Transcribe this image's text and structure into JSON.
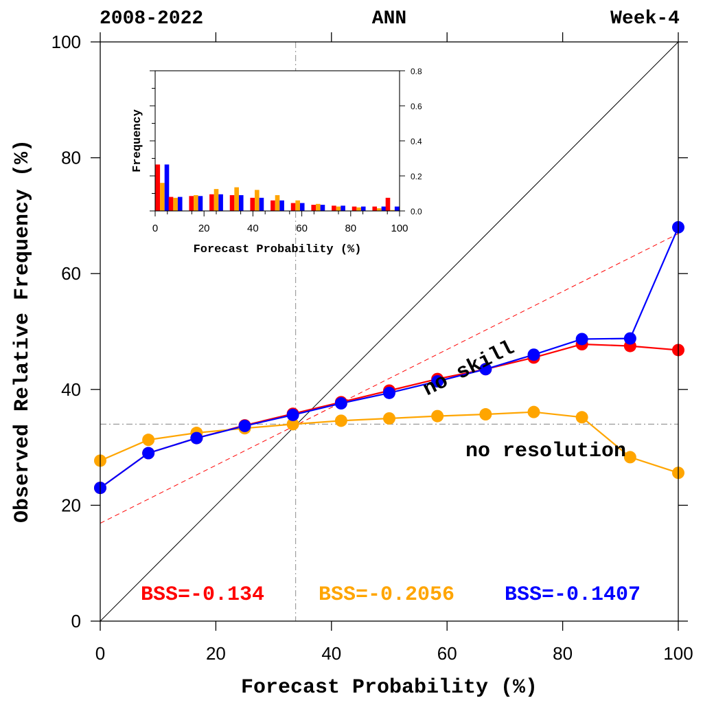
{
  "header": {
    "left": "2008-2022",
    "center": "ANN",
    "right": "Week-4"
  },
  "chart_data": [
    {
      "type": "line",
      "xlabel": "Forecast Probability (%)",
      "ylabel": "Observed Relative Frequency (%)",
      "xlim": [
        0,
        100
      ],
      "ylim": [
        0,
        100
      ],
      "x_ticks": [
        "0",
        "20",
        "40",
        "60",
        "80",
        "100"
      ],
      "y_ticks": [
        "0",
        "20",
        "40",
        "60",
        "80",
        "100"
      ],
      "grid": false,
      "x": [
        0,
        8.33,
        16.67,
        25,
        33.33,
        41.67,
        50,
        58.33,
        66.67,
        75,
        83.33,
        91.67,
        100
      ],
      "series": [
        {
          "color": "#ff0000",
          "values": [
            23.0,
            29.0,
            31.6,
            33.8,
            35.8,
            37.8,
            39.8,
            41.8,
            43.5,
            45.5,
            47.8,
            47.5,
            46.8
          ]
        },
        {
          "color": "#ffa500",
          "values": [
            27.7,
            31.3,
            32.5,
            33.3,
            34.0,
            34.6,
            35.0,
            35.4,
            35.7,
            36.1,
            35.2,
            28.3,
            25.6
          ]
        },
        {
          "color": "#0000ff",
          "values": [
            23.0,
            29.0,
            31.6,
            33.7,
            35.6,
            37.6,
            39.4,
            41.4,
            43.5,
            46.0,
            48.7,
            48.8,
            68.0
          ]
        }
      ],
      "perfect_reliability": {
        "x": [
          0,
          100
        ],
        "y": [
          0,
          100
        ],
        "color": "#000000"
      },
      "no_skill": {
        "label": "no skill",
        "x": [
          0,
          100
        ],
        "y": [
          16.9,
          66.9
        ],
        "color": "#ff0000"
      },
      "no_resolution": {
        "label": "no resolution",
        "y": 34,
        "color": "#999999"
      },
      "climatology_x": 33.8,
      "bss": [
        {
          "label": "BSS=-0.134",
          "color": "#ff0000"
        },
        {
          "label": "BSS=-0.2056",
          "color": "#ffa500"
        },
        {
          "label": "BSS=-0.1407",
          "color": "#0000ff"
        }
      ]
    },
    {
      "type": "bar",
      "xlabel": "Forecast Probability (%)",
      "ylabel": "Frequency",
      "xlim": [
        0,
        100
      ],
      "ylim": [
        0,
        0.8
      ],
      "x_ticks": [
        "0",
        "20",
        "40",
        "60",
        "80",
        "100"
      ],
      "y_ticks": [
        "0.0",
        "0.2",
        "0.4",
        "0.6",
        "0.8"
      ],
      "categories": [
        0,
        8.33,
        16.67,
        25,
        33.33,
        41.67,
        50,
        58.33,
        66.67,
        75,
        83.33,
        91.67,
        100
      ],
      "series": [
        {
          "color": "#ff0000",
          "values": [
            0.265,
            0.08,
            0.085,
            0.095,
            0.09,
            0.075,
            0.06,
            0.045,
            0.035,
            0.03,
            0.025,
            0.025,
            0.075
          ]
        },
        {
          "color": "#ffa500",
          "values": [
            0.16,
            0.075,
            0.09,
            0.125,
            0.135,
            0.12,
            0.09,
            0.06,
            0.04,
            0.025,
            0.02,
            0.015,
            0.005
          ]
        },
        {
          "color": "#0000ff",
          "values": [
            0.265,
            0.08,
            0.085,
            0.095,
            0.09,
            0.075,
            0.06,
            0.045,
            0.035,
            0.03,
            0.025,
            0.025,
            0.025
          ]
        }
      ]
    }
  ]
}
